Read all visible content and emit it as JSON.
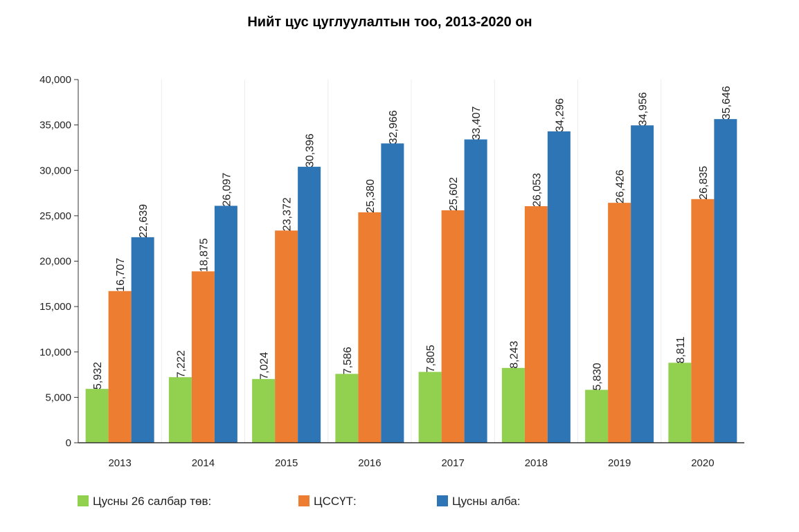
{
  "chart_data": {
    "type": "bar",
    "title": "Нийт цус цуглуулалтын тоо, 2013-2020 он",
    "xlabel": "",
    "ylabel": "",
    "categories": [
      "2013",
      "2014",
      "2015",
      "2016",
      "2017",
      "2018",
      "2019",
      "2020"
    ],
    "ylim": [
      0,
      40000
    ],
    "yticks": [
      0,
      5000,
      10000,
      15000,
      20000,
      25000,
      30000,
      35000,
      40000
    ],
    "ytick_labels": [
      "0",
      "5,000",
      "10,000",
      "15,000",
      "20,000",
      "25,000",
      "30,000",
      "35,000",
      "40,000"
    ],
    "grid": "vertical",
    "legend_position": "bottom",
    "series": [
      {
        "name": "Цусны 26 салбар төв:",
        "color": "#92d050",
        "values": [
          5932,
          7222,
          7024,
          7586,
          7805,
          8243,
          5830,
          8811
        ],
        "labels": [
          "5,932",
          "7,222",
          "7,024",
          "7,586",
          "7,805",
          "8,243",
          "5,830",
          "8,811"
        ]
      },
      {
        "name": "ЦССҮТ:",
        "color": "#ed7d31",
        "values": [
          16707,
          18875,
          23372,
          25380,
          25602,
          26053,
          26426,
          26835
        ],
        "labels": [
          "16,707",
          "18,875",
          "23,372",
          "25,380",
          "25,602",
          "26,053",
          "26,426",
          "26,835"
        ]
      },
      {
        "name": "Цусны алба:",
        "color": "#2e75b6",
        "values": [
          22639,
          26097,
          30396,
          32966,
          33407,
          34296,
          34956,
          35646
        ],
        "labels": [
          "22,639",
          "26,097",
          "30,396",
          "32,966",
          "33,407",
          "34,296",
          "34,956",
          "35,646"
        ]
      }
    ]
  }
}
